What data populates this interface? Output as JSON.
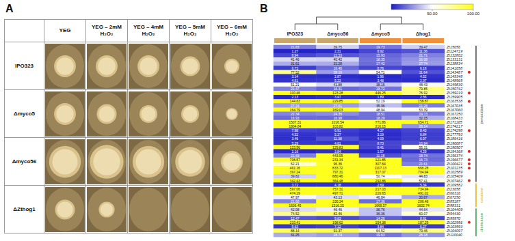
{
  "panel_a": {
    "letter": "A",
    "columns": [
      "YEG",
      "YEG – 2mM H₂O₂",
      "YEG – 4mM H₂O₂",
      "YEG – 5mM H₂O₂",
      "YEG – 6mM H₂O₂"
    ],
    "rows": [
      {
        "strain": "IPO323",
        "colony_diameter": [
          0.55,
          0.55,
          0.55,
          0.5,
          0.38
        ]
      },
      {
        "strain": "Δmyco5",
        "colony_diameter": [
          0.55,
          0.5,
          0.45,
          0.45,
          0.3
        ]
      },
      {
        "strain": "Δmyco56",
        "colony_diameter": [
          0.8,
          0.85,
          0.8,
          0.75,
          0.55
        ]
      },
      {
        "strain": "ΔZthog1",
        "colony_diameter": [
          0.5,
          0.4,
          0,
          0,
          0
        ]
      }
    ]
  },
  "chart_data": {
    "type": "heatmap",
    "letter": "B",
    "categories": [
      "IPO323",
      "Δmyco56",
      "Δmyco5",
      "Δhog1"
    ],
    "colors": [
      "#c9a66b",
      "#c9a66b",
      "#f0913a",
      "#f0913a"
    ],
    "dendrogram": [
      [
        "IPO323",
        "Δmyco56"
      ],
      [
        "Δmyco5",
        "Δhog1"
      ]
    ],
    "rows": [
      "Zt15056",
      "Zt124719",
      "Zt132802",
      "Zt133131",
      "Zt138834",
      "Zt141058",
      "Zt143487",
      "Zt145348",
      "Zt148965",
      "Zt149830",
      "Zt150742",
      "Zt159219",
      "Zt159905",
      "Zt163538",
      "Zt167035",
      "Zt167060",
      "Zt167250",
      "Zt168433",
      "Zt171165",
      "Zt174217",
      "Zt174298",
      "Zt177793",
      "Zt186416",
      "Zt190087",
      "Zt190507",
      "Zt194368",
      "Zt196374",
      "Zt196677",
      "Zt100421",
      "Zt101235",
      "Zt102589",
      "Zt105409",
      "Zt107462",
      "Zt109582",
      "Zt23658",
      "Zt66316",
      "Zt67250",
      "Zt85187",
      "Zt98331",
      "Zt104409",
      "Zt94430",
      "Zt95970",
      "Zt102956",
      "Zt103593",
      "Zt104097",
      "Zt110040"
    ],
    "values": [
      [
        21.83,
        39.75,
        19.73,
        39.47
      ],
      [
        1.27,
        2.31,
        8.92,
        11.36
      ],
      [
        8.94,
        12.53,
        15.93,
        21.71
      ],
      [
        41.46,
        40.42,
        18.35,
        26.08
      ],
      [
        31.61,
        31.28,
        17.42,
        27.74
      ],
      [
        6.73,
        16.46,
        8.76,
        6.18
      ],
      [
        77.52,
        28.16,
        54.71,
        11.64
      ],
      [
        3.14,
        2.87,
        1.96,
        4.52
      ],
      [
        4.61,
        5.23,
        3.48,
        2.97
      ],
      [
        51.21,
        41.88,
        38.16,
        48.43
      ],
      [
        21.47,
        16.31,
        18.72,
        79.85
      ],
      [
        100.46,
        123.28,
        446.25,
        76.92
      ],
      [
        2.13,
        3.47,
        1.89,
        2.56
      ],
      [
        144.63,
        229.85,
        52.19,
        158.87
      ],
      [
        27.34,
        27.61,
        35.36,
        21.28
      ],
      [
        164.79,
        169.03,
        48.94,
        53.39
      ],
      [
        22.34,
        24.35,
        18.51,
        19.73
      ],
      [
        16.93,
        16.98,
        18.29,
        32.15
      ],
      [
        1507.31,
        1016.54,
        771.86,
        654.71
      ],
      [
        1804.84,
        103.82,
        216.15,
        26.14
      ],
      [
        7.98,
        6.91,
        4.37,
        8.43
      ],
      [
        4.52,
        5.37,
        3.19,
        6.84
      ],
      [
        3.46,
        11.38,
        4.09,
        6.97
      ],
      [
        5.29,
        4.61,
        8.73,
        10.94
      ],
      [
        123.56,
        129.83,
        8.41,
        55.31
      ],
      [
        2.16,
        3.84,
        1.57,
        4.29
      ],
      [
        21.69,
        443.05,
        11.18,
        18.74
      ],
      [
        706.57,
        231.34,
        121.85,
        16.73
      ],
      [
        62.21,
        96.36,
        307.64,
        21.61
      ],
      [
        461.16,
        833.72,
        1107.13,
        666.28
      ],
      [
        397.24,
        797.31,
        317.07,
        704.94
      ],
      [
        39.82,
        880.46,
        50.74,
        44.83
      ],
      [
        342.43,
        364.48,
        292.86,
        57.41
      ],
      [
        3.72,
        4.18,
        2.69,
        5.34
      ],
      [
        597.06,
        757.31,
        217.03,
        734.94
      ],
      [
        474.29,
        497.71,
        220.65,
        491.02
      ],
      [
        47.97,
        43.13,
        46.84,
        30.87
      ],
      [
        21.68,
        330.34,
        17.36,
        206.48
      ],
      [
        1606.45,
        1516.25,
        1669.57,
        1602.74
      ],
      [
        42.08,
        46.46,
        36.76,
        44.64
      ],
      [
        74.52,
        82.46,
        36.36,
        60.07
      ],
      [
        12.47,
        9.83,
        14.26,
        8.91
      ],
      [
        233.41,
        198.62,
        154.38,
        187.29
      ],
      [
        5.63,
        7.12,
        3.84,
        6.27
      ],
      [
        88.14,
        91.37,
        64.52,
        79.46
      ],
      [
        31.25,
        28.74,
        19.63,
        26.18
      ]
    ],
    "data_labels": true,
    "marked": [
      "Zt143487",
      "Zt159219",
      "Zt163538",
      "Zt174298",
      "Zt194368",
      "Zt196677",
      "Zt100421",
      "Zt101235",
      "Zt107462",
      "Zt102956"
    ],
    "groups": [
      {
        "name": "peroxidase",
        "from": "Zt15056",
        "to": "Zt107462",
        "color": "#4a4a4a"
      },
      {
        "name": "catalase",
        "from": "Zt109582",
        "to": "Zt98331",
        "color": "#e0b000"
      },
      {
        "name": "dismutase",
        "from": "Zt104409",
        "to": "Zt110040",
        "color": "#2e9e44"
      }
    ],
    "colorbar_range": [
      0,
      100
    ],
    "colorbar_ticks": [
      {
        "value": 50,
        "label": "50.00"
      },
      {
        "value": 100,
        "label": "100.00"
      }
    ]
  }
}
